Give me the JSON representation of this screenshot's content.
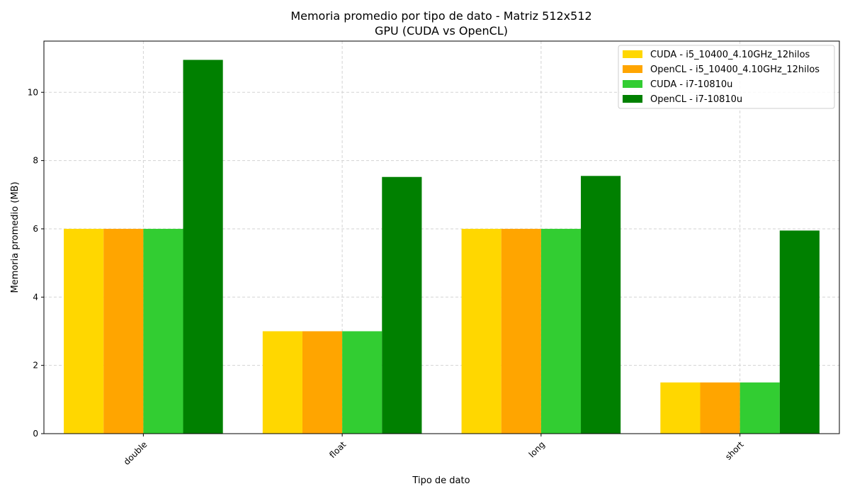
{
  "chart_data": {
    "type": "bar",
    "title": "Memoria promedio por tipo de dato - Matriz 512x512",
    "subtitle": "GPU (CUDA vs OpenCL)",
    "xlabel": "Tipo de dato",
    "ylabel": "Memoria promedio (MB)",
    "categories": [
      "double",
      "float",
      "long",
      "short"
    ],
    "ylim": [
      0,
      11.5
    ],
    "yticks": [
      0,
      2,
      4,
      6,
      8,
      10
    ],
    "grid": true,
    "legend_position": "top-right",
    "series": [
      {
        "name": "CUDA - i5_10400_4.10GHz_12hilos",
        "color": "#FFD700",
        "values": [
          6.0,
          3.0,
          6.0,
          1.5
        ]
      },
      {
        "name": "OpenCL - i5_10400_4.10GHz_12hilos",
        "color": "#FFA500",
        "values": [
          6.0,
          3.0,
          6.0,
          1.5
        ]
      },
      {
        "name": "CUDA - i7-10810u",
        "color": "#32CD32",
        "values": [
          6.0,
          3.0,
          6.0,
          1.5
        ]
      },
      {
        "name": "OpenCL - i7-10810u",
        "color": "#008000",
        "values": [
          10.95,
          7.52,
          7.55,
          5.95
        ]
      }
    ]
  }
}
